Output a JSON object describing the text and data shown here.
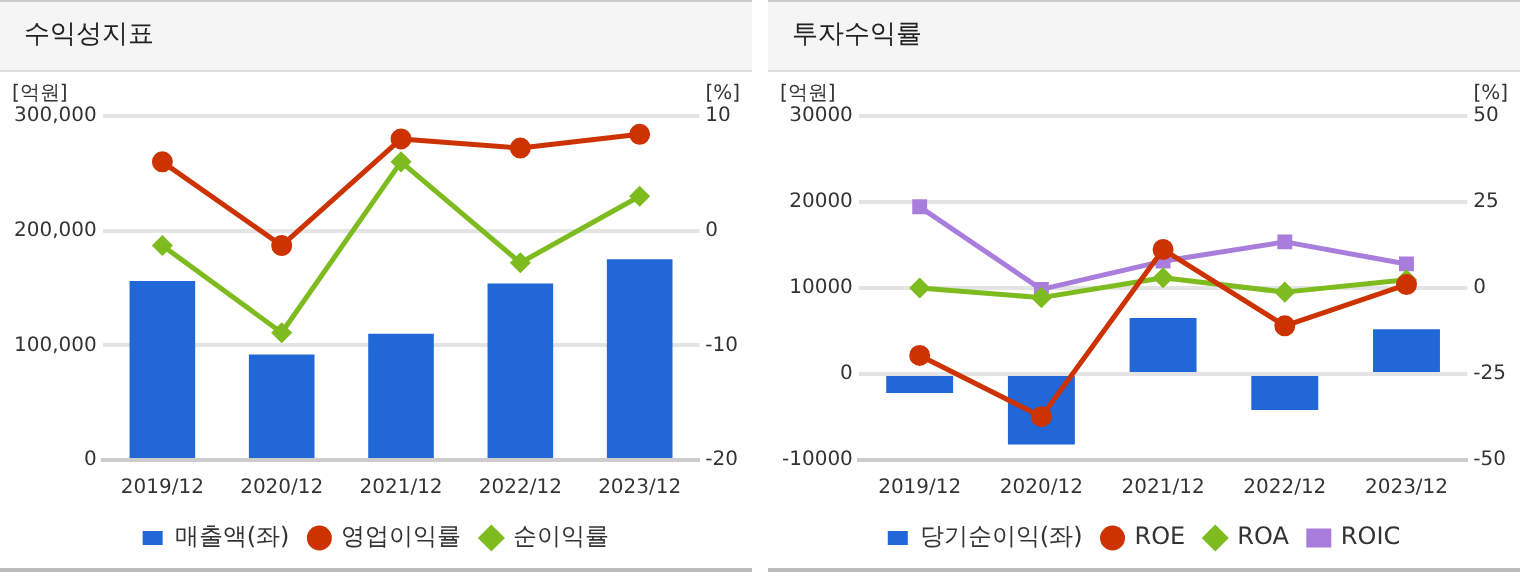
{
  "chart_data": [
    {
      "type": "bar",
      "title": "수익성지표",
      "ylabel": "[억원]",
      "y2label": "[%]",
      "categories": [
        "2019/12",
        "2020/12",
        "2021/12",
        "2022/12",
        "2023/12"
      ],
      "series": [
        {
          "name": "매출액(좌)",
          "color": "#2167d8",
          "values": [
            156000,
            92000,
            110000,
            154000,
            175000
          ]
        },
        {
          "name": "영업이익률",
          "type": "line",
          "axis": "y2",
          "marker": "circle",
          "color": "#cc3300",
          "values": [
            6.0,
            -1.3,
            8.0,
            7.2,
            8.4
          ]
        },
        {
          "name": "순이익률",
          "type": "line",
          "axis": "y2",
          "marker": "diamond",
          "color": "#7dbb1f",
          "values": [
            -1.3,
            -8.9,
            6.0,
            -2.8,
            3.0
          ]
        }
      ],
      "ylim": [
        0,
        300000
      ],
      "yticks": [
        0,
        {
          "value": 100000,
          "label": "100,000"
        },
        {
          "value": 200000,
          "label": "200,000"
        },
        {
          "value": 300000,
          "label": "300,000"
        }
      ],
      "y2lim": [
        -20,
        10
      ],
      "y2ticks": [
        -20,
        -10,
        0,
        10
      ],
      "grid": "y",
      "legend": "bottom"
    },
    {
      "type": "bar",
      "title": "투자수익률",
      "ylabel": "[억원]",
      "y2label": "[%]",
      "categories": [
        "2019/12",
        "2020/12",
        "2021/12",
        "2022/12",
        "2023/12"
      ],
      "series": [
        {
          "name": "당기순이익(좌)",
          "color": "#2167d8",
          "values": [
            -2200,
            -8200,
            6500,
            -4200,
            5200
          ]
        },
        {
          "name": "ROE",
          "type": "line",
          "axis": "y2",
          "marker": "circle",
          "color": "#cc3300",
          "values": [
            -19.6,
            -37.4,
            11.2,
            -11.0,
            1.0
          ]
        },
        {
          "name": "ROA",
          "type": "line",
          "axis": "y2",
          "marker": "diamond",
          "color": "#7dbb1f",
          "values": [
            0.0,
            -2.8,
            3.0,
            -1.2,
            2.4
          ]
        },
        {
          "name": "ROIC",
          "type": "line",
          "axis": "y2",
          "marker": "square",
          "color": "#a97ddb",
          "values": [
            23.6,
            -0.4,
            7.8,
            13.4,
            7.0
          ]
        }
      ],
      "ylim": [
        -10000,
        30000
      ],
      "yticks": [
        -10000,
        0,
        10000,
        20000,
        30000
      ],
      "y2lim": [
        -50,
        50
      ],
      "y2ticks": [
        -50,
        -25,
        0,
        25,
        50
      ],
      "grid": "y",
      "legend": "bottom"
    }
  ]
}
